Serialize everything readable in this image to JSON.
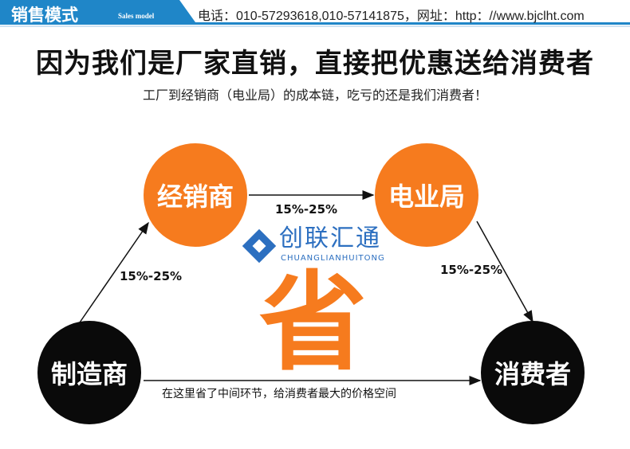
{
  "header": {
    "title": "销售模式",
    "subtitle": "Sales model",
    "contact": "电话：010-57293618,010-57141875，网址：http：//www.bjclht.com",
    "accent": "#1f86c8"
  },
  "headline": "因为我们是厂家直销，直接把优惠送给消费者",
  "subline": "工厂到经销商（电业局）的成本链，吃亏的还是我们消费者！",
  "nodes": {
    "dealer": "经销商",
    "bureau": "电业局",
    "manufacturer": "制造商",
    "consumer": "消费者"
  },
  "edges": {
    "manu_to_dealer": "15%-25%",
    "dealer_to_bureau": "15%-25%",
    "bureau_to_consumer": "15%-25%",
    "manu_to_consumer": "在这里省了中间环节，给消费者最大的价格空间"
  },
  "center_char": "省",
  "watermark": {
    "cn": "创联汇通",
    "en": "CHUANGLIANHUITONG"
  },
  "colors": {
    "orange": "#f67b1e",
    "black": "#0a0a0a",
    "logo_blue": "#2c6fc0"
  }
}
